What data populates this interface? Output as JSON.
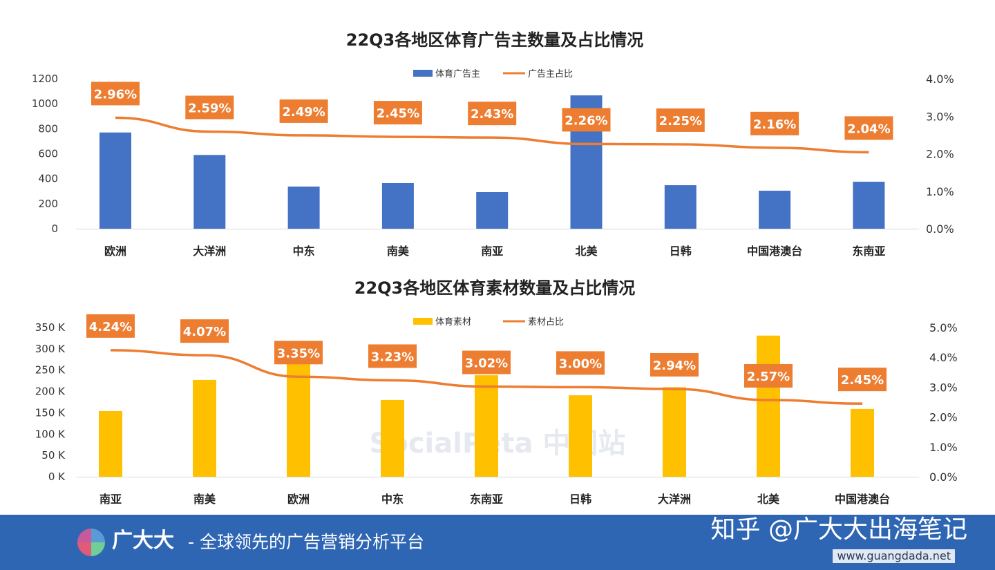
{
  "watermark": "SocialPeta 中国站",
  "colors": {
    "bar_top": "#4472c4",
    "bar_bottom": "#ffc000",
    "line": "#ed7d31",
    "footer": "#2f66b3"
  },
  "chart_data": [
    {
      "type": "bar",
      "title": "22Q3各地区体育广告主数量及占比情况",
      "categories": [
        "欧洲",
        "大洋洲",
        "中东",
        "南美",
        "南亚",
        "北美",
        "日韩",
        "中国港澳台",
        "东南亚"
      ],
      "series": [
        {
          "name": "体育广告主",
          "type": "bar",
          "axis": "left",
          "values": [
            770,
            590,
            337,
            365,
            293,
            1067,
            348,
            304,
            376
          ]
        },
        {
          "name": "广告主占比",
          "type": "line",
          "axis": "right",
          "values": [
            2.96,
            2.59,
            2.49,
            2.45,
            2.43,
            2.26,
            2.25,
            2.16,
            2.04
          ],
          "labels": [
            "2.96%",
            "2.59%",
            "2.49%",
            "2.45%",
            "2.43%",
            "2.26%",
            "2.25%",
            "2.16%",
            "2.04%"
          ]
        }
      ],
      "ylim": [
        0,
        1200
      ],
      "yticks": [
        "0",
        "200",
        "400",
        "600",
        "800",
        "1000",
        "1200"
      ],
      "y2lim": [
        0,
        4
      ],
      "y2ticks": [
        "0.0%",
        "1.0%",
        "2.0%",
        "3.0%",
        "4.0%"
      ],
      "legend": "top-center"
    },
    {
      "type": "bar",
      "title": "22Q3各地区体育素材数量及占比情况",
      "categories": [
        "南亚",
        "南美",
        "欧洲",
        "中东",
        "东南亚",
        "日韩",
        "大洋洲",
        "北美",
        "中国港澳台"
      ],
      "series": [
        {
          "name": "体育素材",
          "type": "bar",
          "axis": "left",
          "values": [
            154,
            227,
            265,
            180,
            238,
            191,
            210,
            331,
            159
          ]
        },
        {
          "name": "素材占比",
          "type": "line",
          "axis": "right",
          "values": [
            4.24,
            4.07,
            3.35,
            3.23,
            3.02,
            3.0,
            2.94,
            2.57,
            2.45
          ],
          "labels": [
            "4.24%",
            "4.07%",
            "3.35%",
            "3.23%",
            "3.02%",
            "3.00%",
            "2.94%",
            "2.57%",
            "2.45%"
          ]
        }
      ],
      "ylim": [
        0,
        350
      ],
      "yticks": [
        "0 K",
        "50 K",
        "100 K",
        "150 K",
        "200 K",
        "250 K",
        "300 K",
        "350 K"
      ],
      "y2lim": [
        0,
        5
      ],
      "y2ticks": [
        "0.0%",
        "1.0%",
        "2.0%",
        "3.0%",
        "4.0%",
        "5.0%"
      ],
      "legend": "top-center"
    }
  ],
  "footer": {
    "brand": "广大大",
    "slogan": "- 全球领先的广告营销分析平台",
    "credit": "知乎 @广大大出海笔记",
    "url": "www.guangdada.net"
  }
}
